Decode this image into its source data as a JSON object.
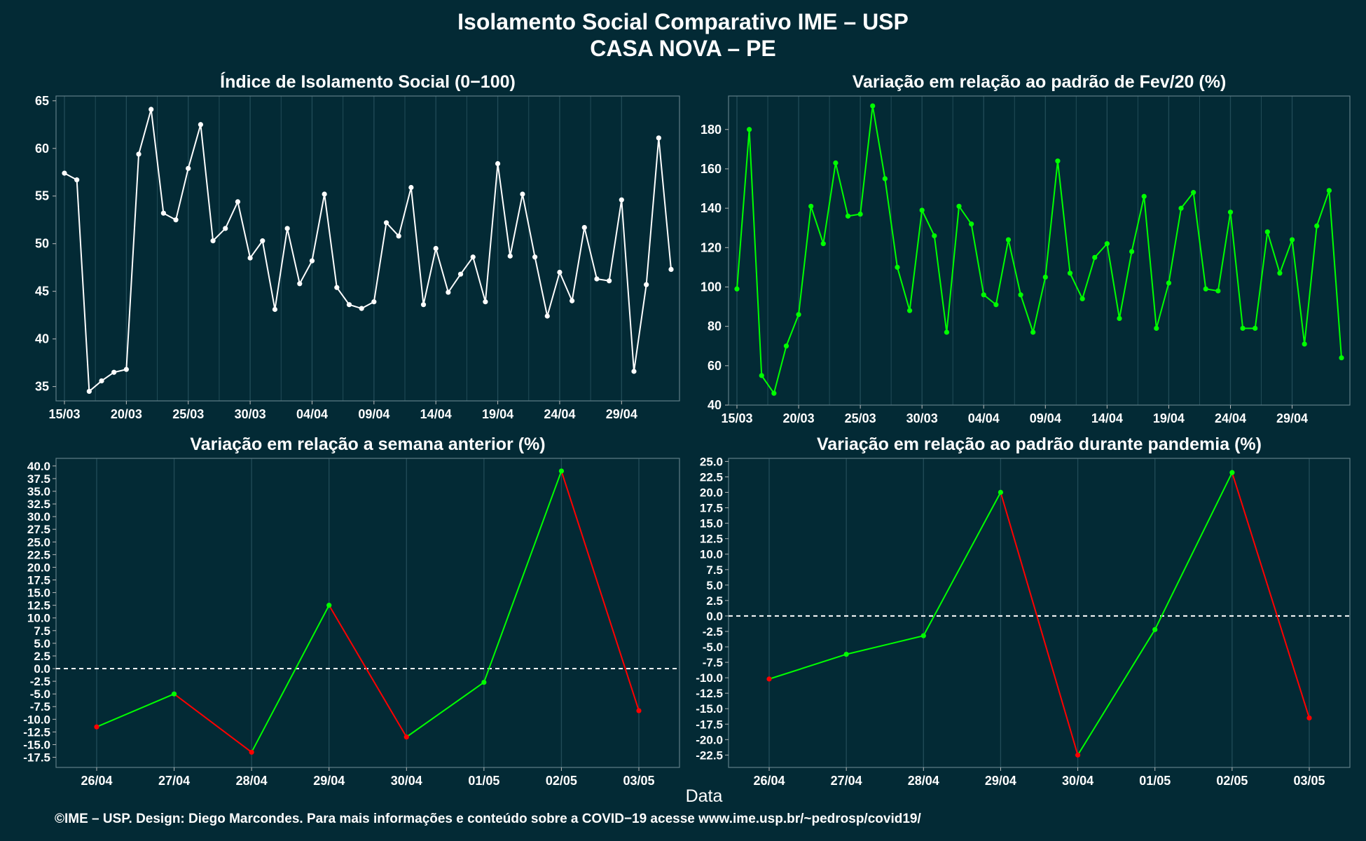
{
  "title": "Isolamento Social Comparativo IME – USP",
  "subtitle": "CASA NOVA – PE",
  "x_axis_label": "Data",
  "footer": "©IME – USP. Design: Diego Marcondes. Para mais informações e conteúdo sobre a COVID−19 acesse www.ime.usp.br/~pedrosp/covid19/",
  "colors": {
    "background": "#032a35",
    "grid": "#224c58",
    "white_line": "#ffffff",
    "green_line": "#00ff00",
    "red_line": "#ff0000",
    "dashed_zero": "#ffffff"
  },
  "chart_data": [
    {
      "type": "line",
      "title": "Índice de Isolamento Social (0−100)",
      "color": "white",
      "x_ticks": [
        "15/03",
        "20/03",
        "25/03",
        "30/03",
        "04/04",
        "09/04",
        "14/04",
        "19/04",
        "24/04",
        "29/04"
      ],
      "x": [
        "15/03",
        "16/03",
        "17/03",
        "18/03",
        "19/03",
        "20/03",
        "21/03",
        "22/03",
        "23/03",
        "24/03",
        "25/03",
        "26/03",
        "27/03",
        "28/03",
        "29/03",
        "30/03",
        "31/03",
        "01/04",
        "02/04",
        "03/04",
        "04/04",
        "05/04",
        "06/04",
        "07/04",
        "08/04",
        "09/04",
        "10/04",
        "11/04",
        "12/04",
        "13/04",
        "14/04",
        "15/04",
        "16/04",
        "17/04",
        "18/04",
        "19/04",
        "20/04",
        "21/04",
        "22/04",
        "23/04",
        "24/04",
        "25/04",
        "26/04",
        "27/04",
        "28/04",
        "29/04",
        "30/04",
        "01/05",
        "02/05",
        "03/05"
      ],
      "values": [
        57.4,
        56.7,
        34.5,
        35.6,
        36.5,
        36.8,
        59.4,
        64.1,
        53.2,
        52.5,
        57.9,
        62.5,
        50.3,
        51.6,
        54.4,
        48.5,
        50.3,
        43.1,
        51.6,
        45.8,
        48.2,
        55.2,
        45.4,
        43.6,
        43.2,
        43.9,
        52.2,
        50.8,
        55.9,
        43.6,
        49.5,
        44.9,
        46.8,
        48.6,
        43.9,
        58.4,
        48.7,
        55.2,
        48.6,
        42.4,
        47.0,
        44.0,
        51.7,
        46.3,
        46.1,
        54.6,
        36.6,
        45.7,
        61.1,
        47.3
      ],
      "yticks": [
        35,
        40,
        45,
        50,
        55,
        60,
        65
      ],
      "ylim": [
        33.5,
        65.5
      ]
    },
    {
      "type": "line",
      "title": "Variação em relação ao padrão de Fev/20 (%)",
      "color": "green",
      "x_ticks": [
        "15/03",
        "20/03",
        "25/03",
        "30/03",
        "04/04",
        "09/04",
        "14/04",
        "19/04",
        "24/04",
        "29/04"
      ],
      "x": [
        "15/03",
        "16/03",
        "17/03",
        "18/03",
        "19/03",
        "20/03",
        "21/03",
        "22/03",
        "23/03",
        "24/03",
        "25/03",
        "26/03",
        "27/03",
        "28/03",
        "29/03",
        "30/03",
        "31/03",
        "01/04",
        "02/04",
        "03/04",
        "04/04",
        "05/04",
        "06/04",
        "07/04",
        "08/04",
        "09/04",
        "10/04",
        "11/04",
        "12/04",
        "13/04",
        "14/04",
        "15/04",
        "16/04",
        "17/04",
        "18/04",
        "19/04",
        "20/04",
        "21/04",
        "22/04",
        "23/04",
        "24/04",
        "25/04",
        "26/04",
        "27/04",
        "28/04",
        "29/04",
        "30/04",
        "01/05",
        "02/05",
        "03/05"
      ],
      "values": [
        99,
        180,
        55,
        46,
        70,
        86,
        141,
        122,
        163,
        136,
        137,
        192,
        155,
        110,
        88,
        139,
        126,
        77,
        141,
        132,
        96,
        91,
        124,
        96,
        77,
        105,
        164,
        107,
        94,
        115,
        122,
        84,
        118,
        146,
        79,
        102,
        140,
        148,
        99,
        98,
        138,
        79,
        79,
        128,
        107,
        124,
        71,
        131,
        149,
        64
      ],
      "yticks": [
        40,
        60,
        80,
        100,
        120,
        140,
        160,
        180
      ],
      "ylim": [
        40,
        197
      ]
    },
    {
      "type": "line",
      "title": "Variação em relação a semana anterior (%)",
      "color": "segment: green when rising, red when falling",
      "x": [
        "26/04",
        "27/04",
        "28/04",
        "29/04",
        "30/04",
        "01/05",
        "02/05",
        "03/05"
      ],
      "values": [
        -11.5,
        -5.0,
        -16.5,
        12.5,
        -13.5,
        -2.7,
        39.0,
        -8.3
      ],
      "yticks": [
        -17.5,
        -15.0,
        -12.5,
        -10.0,
        -7.5,
        -5.0,
        -2.5,
        0.0,
        2.5,
        5.0,
        7.5,
        10.0,
        12.5,
        15.0,
        17.5,
        20.0,
        22.5,
        25.0,
        27.5,
        30.0,
        32.5,
        35.0,
        37.5,
        40.0
      ],
      "ylim": [
        -19.5,
        41.5
      ],
      "reference_line": 0
    },
    {
      "type": "line",
      "title": "Variação em relação ao padrão durante pandemia (%)",
      "color": "segment: green when rising, red when falling",
      "x": [
        "26/04",
        "27/04",
        "28/04",
        "29/04",
        "30/04",
        "01/05",
        "02/05",
        "03/05"
      ],
      "values": [
        -10.2,
        -6.2,
        -3.2,
        20.0,
        -22.5,
        -2.2,
        23.2,
        -16.5
      ],
      "yticks": [
        -22.5,
        -20.0,
        -17.5,
        -15.0,
        -12.5,
        -10.0,
        -7.5,
        -5.0,
        -2.5,
        0.0,
        2.5,
        5.0,
        7.5,
        10.0,
        12.5,
        15.0,
        17.5,
        20.0,
        22.5,
        25.0
      ],
      "ylim": [
        -24.5,
        25.5
      ],
      "reference_line": 0
    }
  ]
}
